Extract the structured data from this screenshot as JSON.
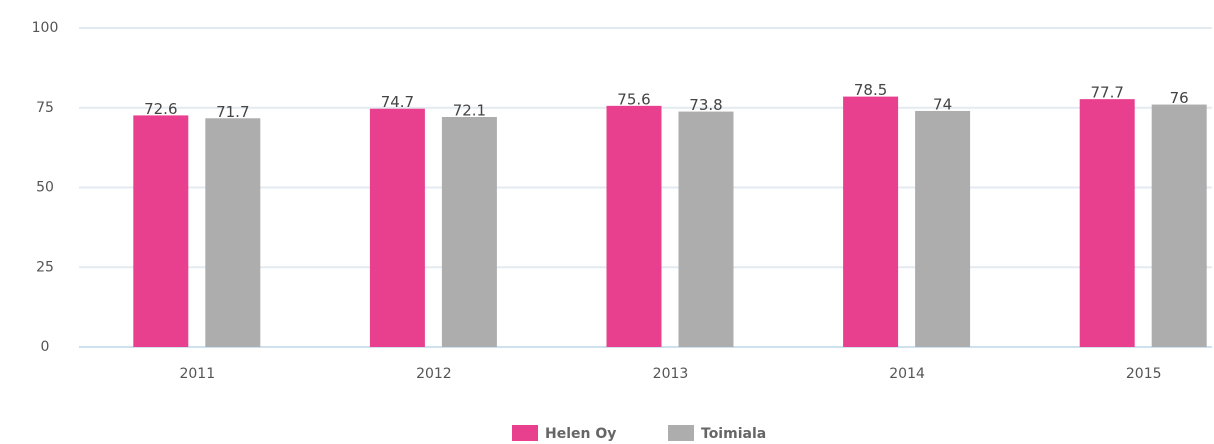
{
  "chart_data": {
    "type": "bar",
    "categories": [
      "2011",
      "2012",
      "2013",
      "2014",
      "2015"
    ],
    "series": [
      {
        "name": "Helen Oy",
        "color": "#e8408e",
        "values": [
          72.6,
          74.7,
          75.6,
          78.5,
          77.7
        ]
      },
      {
        "name": "Toimiala",
        "color": "#adadad",
        "values": [
          71.7,
          72.1,
          73.8,
          74,
          76
        ]
      }
    ],
    "ylim": [
      0,
      100
    ],
    "yticks": [
      0,
      25,
      50,
      75,
      100
    ],
    "grid": true,
    "legend": "bottom"
  }
}
